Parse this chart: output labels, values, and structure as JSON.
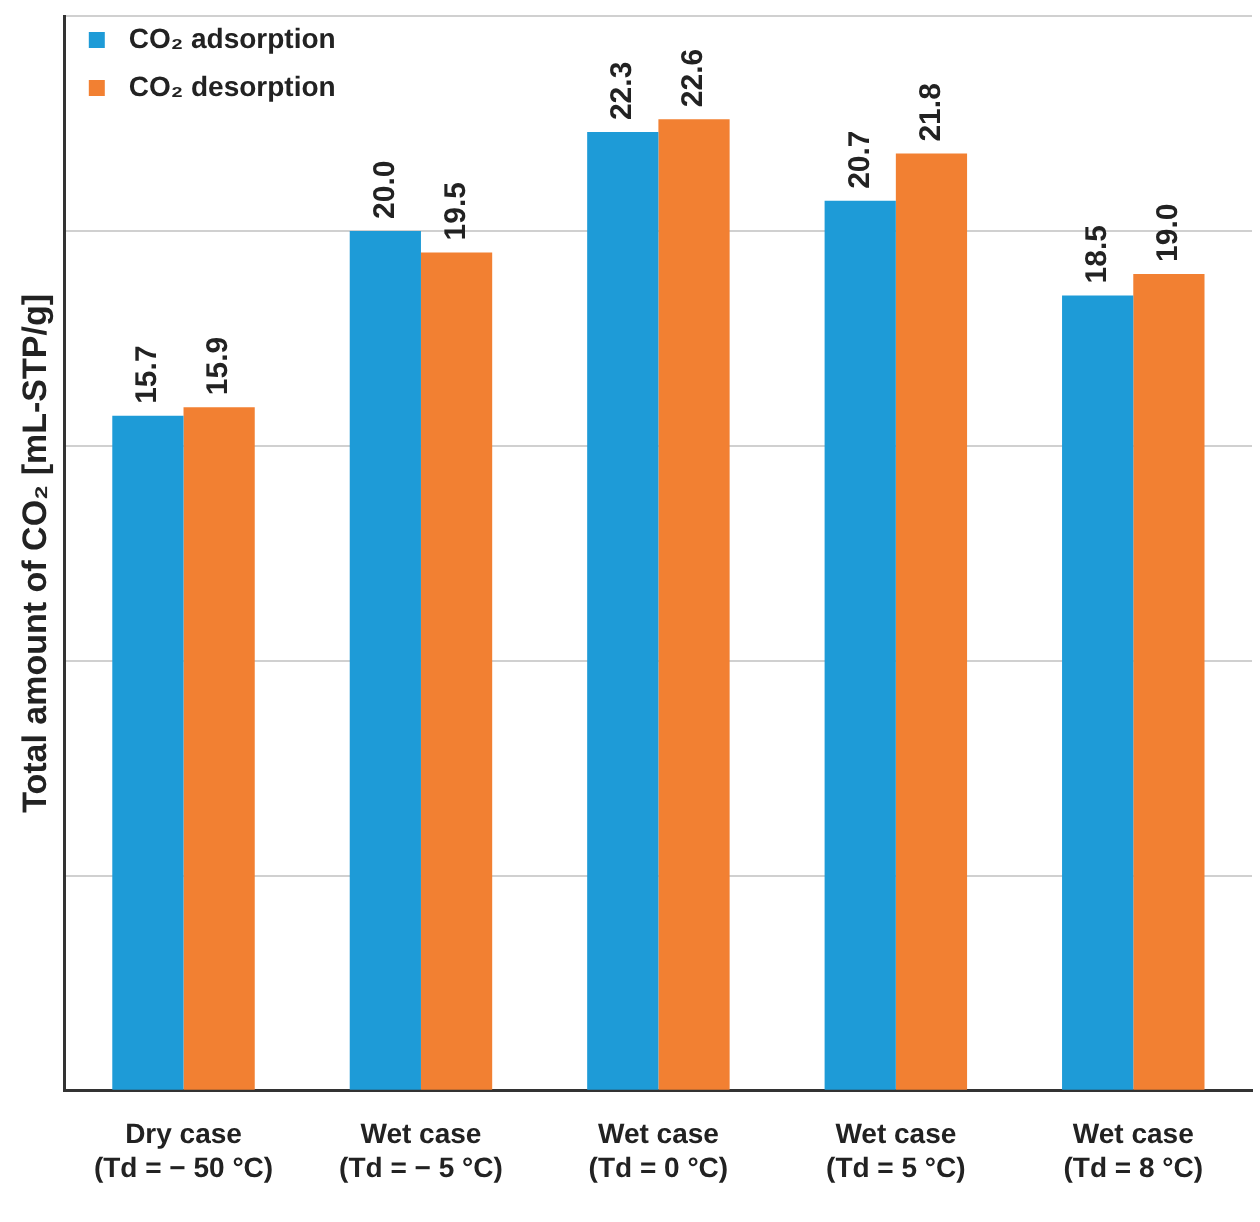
{
  "chart_data": {
    "type": "bar",
    "ylabel": "Total amount of CO₂ [mL-STP/g]",
    "categories": [
      "Dry case\n(Td = − 50 °C)",
      "Wet case\n(Td = − 5 °C)",
      "Wet case\n(Td = 0 °C)",
      "Wet case\n(Td = 5 °C)",
      "Wet case\n(Td = 8 °C)"
    ],
    "series": [
      {
        "name": "CO₂ adsorption",
        "color": "#1e9bd7",
        "values": [
          15.7,
          20.0,
          22.3,
          20.7,
          18.5
        ],
        "value_labels": [
          "15.7",
          "20.0",
          "22.3",
          "20.7",
          "18.5"
        ]
      },
      {
        "name": "CO₂ desorption",
        "color": "#f28032",
        "values": [
          15.9,
          19.5,
          22.6,
          21.8,
          19.0
        ],
        "value_labels": [
          "15.9",
          "19.5",
          "22.6",
          "21.8",
          "19.0"
        ]
      }
    ],
    "ylim": [
      0,
      25
    ],
    "yticks": [
      {
        "value": 0,
        "label": null
      },
      {
        "value": 5,
        "label": null
      },
      {
        "value": 10,
        "label": null
      },
      {
        "value": 15,
        "label": null
      },
      {
        "value": 20,
        "label": null
      },
      {
        "value": 25,
        "label": null
      }
    ],
    "tick_labels": "x",
    "grid": "y",
    "legend": "top left"
  }
}
